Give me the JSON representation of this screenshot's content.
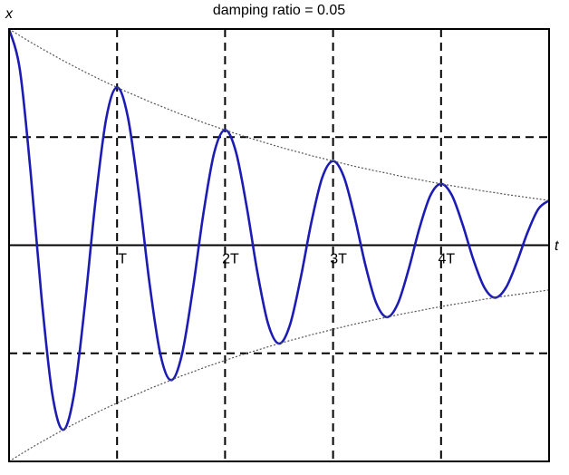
{
  "chart_data": {
    "type": "line",
    "title": "damping ratio = 0.05",
    "x_label": "t",
    "y_label": "x",
    "x": [
      0,
      0.1,
      0.2,
      0.3,
      0.4,
      0.5,
      0.6,
      0.7,
      0.8,
      0.9,
      1,
      1.1,
      1.2,
      1.3,
      1.4,
      1.5,
      1.6,
      1.7,
      1.8,
      1.9,
      2,
      2.1,
      2.2,
      2.3,
      2.4,
      2.5,
      2.6,
      2.7,
      2.8,
      2.9,
      3,
      3.1,
      3.2,
      3.3,
      3.4,
      3.5,
      3.6,
      3.7,
      3.8,
      3.9,
      4,
      4.1,
      4.2,
      4.3,
      4.4,
      4.5,
      4.6,
      4.7,
      4.8,
      4.9,
      5
    ],
    "series": [
      {
        "color": "#1c1cb4",
        "style": "solid",
        "values": [
          1,
          0.812,
          0.335,
          -0.238,
          -0.687,
          -0.854,
          -0.694,
          -0.286,
          0.203,
          0.587,
          0.73,
          0.593,
          0.245,
          -0.174,
          -0.502,
          -0.624,
          -0.507,
          -0.209,
          0.148,
          0.429,
          0.533,
          0.433,
          0.179,
          -0.127,
          -0.366,
          -0.455,
          -0.37,
          -0.152,
          0.108,
          0.313,
          0.389,
          0.316,
          0.13,
          -0.093,
          -0.268,
          -0.333,
          -0.27,
          -0.111,
          0.079,
          0.229,
          0.284,
          0.231,
          0.095,
          -0.068,
          -0.195,
          -0.243,
          -0.197,
          -0.081,
          0.058,
          0.167,
          0.207
        ]
      },
      {
        "color": "#555555",
        "style": "dotted",
        "values": [
          1,
          0.969,
          0.939,
          0.91,
          0.882,
          0.854,
          0.828,
          0.802,
          0.777,
          0.753,
          0.73,
          0.707,
          0.686,
          0.664,
          0.644,
          0.624,
          0.604,
          0.586,
          0.567,
          0.55,
          0.533,
          0.516,
          0.5,
          0.485,
          0.47,
          0.455,
          0.441,
          0.428,
          0.414,
          0.402,
          0.389,
          0.377,
          0.365,
          0.354,
          0.343,
          0.333,
          0.322,
          0.312,
          0.303,
          0.293,
          0.284,
          0.275,
          0.267,
          0.259,
          0.25,
          0.243,
          0.235,
          0.228,
          0.221,
          0.214,
          0.207
        ]
      },
      {
        "color": "#555555",
        "style": "dotted",
        "values": [
          -1,
          -0.969,
          -0.939,
          -0.91,
          -0.882,
          -0.854,
          -0.828,
          -0.802,
          -0.777,
          -0.753,
          -0.73,
          -0.707,
          -0.686,
          -0.664,
          -0.644,
          -0.624,
          -0.604,
          -0.586,
          -0.567,
          -0.55,
          -0.533,
          -0.516,
          -0.5,
          -0.485,
          -0.47,
          -0.455,
          -0.441,
          -0.428,
          -0.414,
          -0.402,
          -0.389,
          -0.377,
          -0.365,
          -0.354,
          -0.343,
          -0.333,
          -0.322,
          -0.312,
          -0.303,
          -0.293,
          -0.284,
          -0.275,
          -0.267,
          -0.259,
          -0.25,
          -0.243,
          -0.235,
          -0.228,
          -0.221,
          -0.214,
          -0.207
        ]
      }
    ],
    "xlim": [
      0,
      5
    ],
    "ylim": [
      -1,
      1
    ],
    "xticks": [
      {
        "value": 1,
        "label": "T"
      },
      {
        "value": 2,
        "label": "2T"
      },
      {
        "value": 3,
        "label": "3T"
      },
      {
        "value": 4,
        "label": "4T"
      }
    ],
    "yticks": [
      -0.5,
      0.5
    ],
    "grid": true
  }
}
